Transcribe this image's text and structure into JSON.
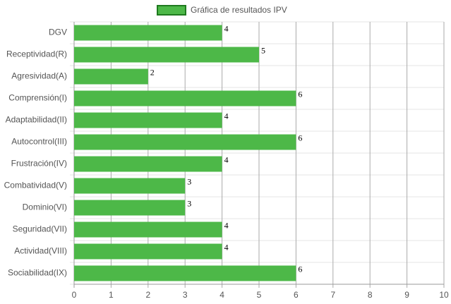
{
  "chart_data": {
    "type": "bar",
    "orientation": "horizontal",
    "categories": [
      "DGV",
      "Receptividad(R)",
      "Agresividad(A)",
      "Comprensión(I)",
      "Adaptabilidad(II)",
      "Autocontrol(III)",
      "Frustración(IV)",
      "Combatividad(V)",
      "Dominio(VI)",
      "Seguridad(VII)",
      "Actividad(VIII)",
      "Sociabilidad(IX)"
    ],
    "series": [
      {
        "name": "Gráfica de resultados IPV",
        "color": "#4db848",
        "values": [
          4,
          5,
          2,
          6,
          4,
          6,
          4,
          3,
          3,
          4,
          4,
          6
        ]
      }
    ],
    "xlim": [
      0,
      10
    ],
    "xticks": [
      0,
      1,
      2,
      3,
      4,
      5,
      6,
      7,
      8,
      9,
      10
    ],
    "grid": true,
    "legend": "top"
  }
}
